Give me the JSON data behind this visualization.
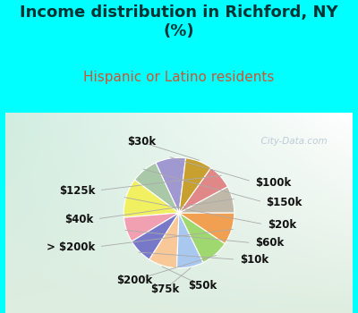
{
  "title": "Income distribution in Richford, NY\n(%)",
  "subtitle": "Hispanic or Latino residents",
  "title_color": "#003333",
  "subtitle_color": "#cc5533",
  "bg_top": "#00FFFF",
  "bg_chart_color": "#d4f0e8",
  "watermark": "  City-Data.com",
  "labels": [
    "$100k",
    "$150k",
    "$20k",
    "$60k",
    "$10k",
    "$50k",
    "$75k",
    "$200k",
    "> $200k",
    "$40k",
    "$125k",
    "$30k"
  ],
  "values": [
    8.5,
    7.5,
    11.0,
    7.0,
    7.0,
    8.0,
    7.5,
    8.0,
    9.0,
    7.5,
    7.0,
    7.5
  ],
  "colors": [
    "#a098d0",
    "#a8c8a8",
    "#f0f060",
    "#f0a0b0",
    "#7878c8",
    "#f8c898",
    "#a8c8f0",
    "#a0d870",
    "#f0a050",
    "#c0b8a8",
    "#e08888",
    "#c8a030"
  ],
  "startangle": 83,
  "title_fontsize": 13,
  "subtitle_fontsize": 11,
  "label_fontsize": 8.5,
  "watermark_fontsize": 7.5
}
